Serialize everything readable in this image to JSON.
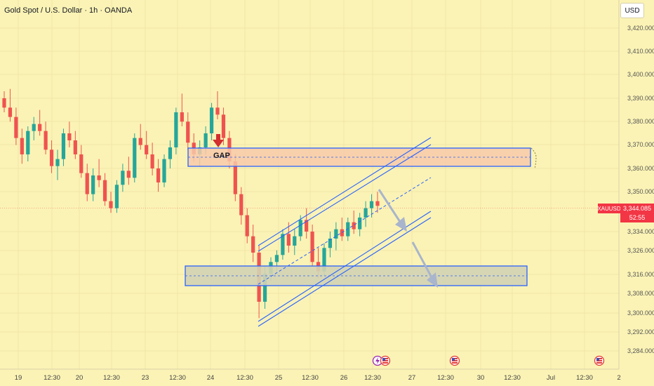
{
  "header": {
    "title": "Gold Spot / U.S. Dollar · 1h · OANDA",
    "currency_label": "USD"
  },
  "price_axis": {
    "ticks": [
      "3,420.000",
      "3,410.000",
      "3,400.000",
      "3,390.000",
      "3,380.000",
      "3,370.000",
      "3,360.000",
      "3,350.000",
      "3,334.000",
      "3,326.000",
      "3,316.000",
      "3,308.000",
      "3,300.000",
      "3,292.000",
      "3,284.000"
    ],
    "symbol": "XAUUSD",
    "last_price": "3,344.085",
    "countdown": "52:55"
  },
  "time_axis": {
    "ticks": [
      "19",
      "12:30",
      "20",
      "12:30",
      "23",
      "12:30",
      "24",
      "12:30",
      "25",
      "12:30",
      "26",
      "12:30",
      "27",
      "12:30",
      "30",
      "12:30",
      "Jul",
      "12:30",
      "2"
    ]
  },
  "annotations": {
    "gap_label": "GAP"
  },
  "colors": {
    "background": "#FBF3B5",
    "bull": "#26A69A",
    "bear": "#EF5350",
    "drawing": "#2962FF",
    "resistance_fill": "#F7C9A9",
    "support_fill": "#D3D3B4",
    "arrow": "#A9B5CC",
    "gap_arrow": "#D32F2F",
    "price_line": "#F23645"
  },
  "icons": {
    "event_icons": [
      "flash-icon",
      "us-flag-icon",
      "us-flag-icon",
      "us-flag-icon"
    ]
  },
  "chart_data": {
    "type": "candlestick",
    "symbol": "XAUUSD",
    "ylim": [
      3284,
      3424
    ],
    "last_price": 3344.085,
    "ohlc": [
      [
        3390,
        3393,
        3384,
        3386
      ],
      [
        3386,
        3394,
        3380,
        3382
      ],
      [
        3382,
        3386,
        3370,
        3373
      ],
      [
        3373,
        3377,
        3362,
        3366
      ],
      [
        3366,
        3378,
        3363,
        3376
      ],
      [
        3376,
        3382,
        3372,
        3379
      ],
      [
        3379,
        3385,
        3374,
        3376
      ],
      [
        3376,
        3380,
        3366,
        3368
      ],
      [
        3368,
        3372,
        3358,
        3361
      ],
      [
        3361,
        3368,
        3355,
        3364
      ],
      [
        3364,
        3377,
        3361,
        3375
      ],
      [
        3375,
        3380,
        3369,
        3372
      ],
      [
        3372,
        3376,
        3364,
        3366
      ],
      [
        3366,
        3370,
        3356,
        3358
      ],
      [
        3358,
        3362,
        3346,
        3349
      ],
      [
        3349,
        3360,
        3346,
        3357
      ],
      [
        3357,
        3364,
        3352,
        3355
      ],
      [
        3355,
        3358,
        3344,
        3346
      ],
      [
        3346,
        3350,
        3341,
        3343
      ],
      [
        3343,
        3355,
        3341,
        3353
      ],
      [
        3353,
        3362,
        3350,
        3359
      ],
      [
        3359,
        3365,
        3353,
        3356
      ],
      [
        3356,
        3375,
        3354,
        3373
      ],
      [
        3373,
        3379,
        3368,
        3370
      ],
      [
        3370,
        3376,
        3364,
        3366
      ],
      [
        3366,
        3371,
        3357,
        3360
      ],
      [
        3360,
        3364,
        3350,
        3354
      ],
      [
        3354,
        3366,
        3352,
        3364
      ],
      [
        3364,
        3372,
        3360,
        3369
      ],
      [
        3369,
        3386,
        3366,
        3384
      ],
      [
        3384,
        3392,
        3378,
        3380
      ],
      [
        3380,
        3384,
        3368,
        3371
      ],
      [
        3371,
        3375,
        3363,
        3366
      ],
      [
        3366,
        3372,
        3361,
        3369
      ],
      [
        3369,
        3378,
        3366,
        3375
      ],
      [
        3375,
        3388,
        3372,
        3386
      ],
      [
        3386,
        3393,
        3381,
        3383
      ],
      [
        3383,
        3386,
        3370,
        3373
      ],
      [
        3373,
        3376,
        3360,
        3363
      ],
      [
        3363,
        3366,
        3346,
        3349
      ],
      [
        3349,
        3352,
        3336,
        3340
      ],
      [
        3340,
        3343,
        3328,
        3331
      ],
      [
        3331,
        3336,
        3320,
        3324
      ],
      [
        3324,
        3327,
        3296,
        3303
      ],
      [
        3303,
        3318,
        3300,
        3315
      ],
      [
        3315,
        3322,
        3312,
        3320
      ],
      [
        3320,
        3325,
        3316,
        3323
      ],
      [
        3323,
        3334,
        3321,
        3332
      ],
      [
        3332,
        3337,
        3324,
        3327
      ],
      [
        3327,
        3334,
        3323,
        3331
      ],
      [
        3331,
        3340,
        3329,
        3338
      ],
      [
        3338,
        3343,
        3330,
        3333
      ],
      [
        3333,
        3336,
        3318,
        3320
      ],
      [
        3320,
        3326,
        3313,
        3316
      ],
      [
        3316,
        3328,
        3314,
        3326
      ],
      [
        3326,
        3333,
        3322,
        3330
      ],
      [
        3330,
        3337,
        3325,
        3334
      ],
      [
        3334,
        3339,
        3329,
        3331
      ],
      [
        3331,
        3339,
        3329,
        3337
      ],
      [
        3337,
        3342,
        3332,
        3334
      ],
      [
        3334,
        3341,
        3331,
        3339
      ],
      [
        3339,
        3346,
        3335,
        3343
      ],
      [
        3343,
        3349,
        3339,
        3346
      ],
      [
        3346,
        3350,
        3341,
        3344
      ]
    ],
    "zones": [
      {
        "name": "GAP",
        "top": 3370,
        "bottom": 3361
      },
      {
        "name": "support",
        "top": 3319,
        "bottom": 3313
      }
    ]
  }
}
